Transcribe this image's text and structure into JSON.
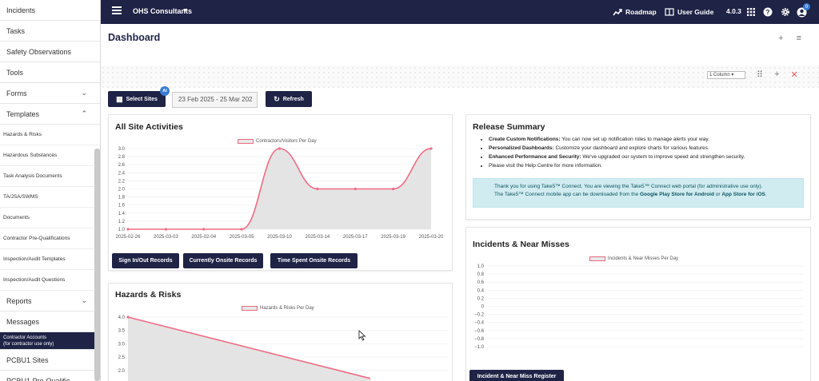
{
  "sidebar": {
    "items": [
      {
        "label": "Incidents",
        "type": "top"
      },
      {
        "label": "Tasks",
        "type": "top"
      },
      {
        "label": "Safety Observations",
        "type": "top"
      },
      {
        "label": "Tools",
        "type": "top"
      },
      {
        "label": "Forms",
        "type": "expand",
        "caret": "⌄"
      },
      {
        "label": "Templates",
        "type": "expand",
        "caret": "⌃"
      },
      {
        "label": "Hazards & Risks",
        "type": "sub"
      },
      {
        "label": "Hazardous Substances",
        "type": "sub"
      },
      {
        "label": "Task Analysis Documents",
        "type": "sub"
      },
      {
        "label": "TA/JSA/SWMS",
        "type": "sub"
      },
      {
        "label": "Documents",
        "type": "sub"
      },
      {
        "label": "Contractor Pre-Qualifications",
        "type": "sub"
      },
      {
        "label": "Inspection/Audit Templates",
        "type": "sub"
      },
      {
        "label": "Inspection/Audit Questions",
        "type": "sub"
      },
      {
        "label": "Reports",
        "type": "expand",
        "caret": "⌄"
      },
      {
        "label": "Messages",
        "type": "top"
      },
      {
        "label": "Contractor Accounts\n(for contractor use only)",
        "type": "dark"
      },
      {
        "label": "PCBU1 Sites",
        "type": "top"
      },
      {
        "label": "PCBU1 Pre-Qualific",
        "type": "top"
      }
    ]
  },
  "topbar": {
    "org": "OHS Consultants",
    "roadmap": "Roadmap",
    "user_guide": "User Guide",
    "version": "4.0.3",
    "notif_count": "0"
  },
  "main": {
    "title": "Dashboard",
    "columns_select": "1 Column",
    "select_sites": "Select Sites",
    "ai_badge": "AI",
    "date_range": "23 Feb 2025 - 25 Mar 202",
    "refresh": "Refresh"
  },
  "activities": {
    "title": "All Site Activities",
    "buttons": [
      "Sign In/Out Records",
      "Currently Onsite Records",
      "Time Spent Onsite Records"
    ]
  },
  "hazards": {
    "title": "Hazards & Risks"
  },
  "release": {
    "title": "Release Summary",
    "items": [
      {
        "bold": "Create Custom Notifications:",
        "text": " You can now set up notification roles to manage alerts your way."
      },
      {
        "bold": "Personalized Dashboards:",
        "text": " Customize your dashboard and explore charts for various features."
      },
      {
        "bold": "Enhanced Performance and Security:",
        "text": " We've upgraded our system to improve speed and strengthen security."
      },
      {
        "bold": "",
        "text": "Please visit the Help Centre for more information."
      }
    ],
    "info_line1": "Thank you for using Take5™ Connect. You are viewing the Take5™ Connect web portal (for administrative use only).",
    "info_line2_pre": "The Take5™ Connect mobile app can be downloaded from the ",
    "info_google": "Google Play Store for Android",
    "info_or": " or ",
    "info_apple": "App Store for iOS",
    "info_end": "."
  },
  "incidents": {
    "title": "Incidents & Near Misses",
    "register_button": "Incident & Near Miss Register"
  },
  "colors": {
    "nav": "#1f2346",
    "line": "#f06b84",
    "info_bg": "#d1ecf1"
  },
  "chart_data": [
    {
      "type": "line",
      "title": "",
      "series": [
        {
          "name": "Contractors/Visitors Per Day",
          "values": [
            1.0,
            1.0,
            1.0,
            1.0,
            3.0,
            2.0,
            2.0,
            2.0,
            3.0
          ]
        }
      ],
      "categories": [
        "2025-02-26",
        "2025-03-03",
        "2025-02-04",
        "2025-03-05",
        "2025-03-10",
        "2025-03-14",
        "2025-03-17",
        "2025-03-19",
        "2025-03-20"
      ],
      "ylim": [
        1.0,
        3.0
      ],
      "yticks": [
        "3.0",
        "2.8",
        "2.6",
        "2.4",
        "2.2",
        "2.0",
        "1.8",
        "1.6",
        "1.4",
        "1.2",
        "1.0"
      ],
      "grid": true,
      "legend": "top"
    },
    {
      "type": "line",
      "title": "",
      "series": [
        {
          "name": "Incidents & Near Misses Per Day",
          "values": []
        }
      ],
      "ylim": [
        -1.0,
        1.0
      ],
      "yticks": [
        "1.0",
        "0.8",
        "0.6",
        "0.4",
        "0.2",
        "0",
        "−0.2",
        "−0.4",
        "−0.6",
        "−0.8",
        "−1.0"
      ],
      "grid": true,
      "legend": "top"
    },
    {
      "type": "line",
      "title": "",
      "series": [
        {
          "name": "Hazards & Risks Per Day",
          "values": [
            4.0,
            1.7
          ]
        }
      ],
      "yticks": [
        "4.0",
        "3.5",
        "3.0",
        "2.5",
        "2.0"
      ],
      "ylim": [
        1.7,
        4.0
      ],
      "grid": true,
      "legend": "top"
    }
  ]
}
